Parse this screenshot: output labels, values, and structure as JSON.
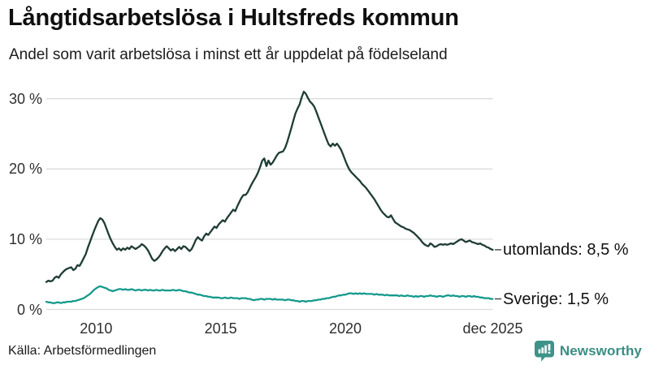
{
  "chart_data": {
    "type": "line",
    "title": "Långtidsarbetslösa i Hultsfreds kommun",
    "subtitle": "Andel som varit arbetslösa i minst ett år uppdelat på födelseland",
    "unit": "%",
    "grid_color": "#dcdcdc",
    "x_axis": {
      "range_years": [
        2008,
        2025.92
      ],
      "ticks": [
        {
          "year": 2010,
          "label": "2010"
        },
        {
          "year": 2015,
          "label": "2015"
        },
        {
          "year": 2020,
          "label": "2020"
        },
        {
          "year": 2025.92,
          "label": "dec 2025"
        }
      ]
    },
    "y_axis": {
      "min": 0,
      "max": 32,
      "grid": true,
      "ticks": [
        {
          "value": 0,
          "label": "0 %"
        },
        {
          "value": 10,
          "label": "10 %"
        },
        {
          "value": 20,
          "label": "20 %"
        },
        {
          "value": 30,
          "label": "30 %"
        }
      ]
    },
    "series": [
      {
        "name": "utomlands",
        "color": "#1e3c35",
        "end_label": "utomlands: 8,5 %",
        "latest_value_pct": 8.5,
        "start_year": 2008,
        "points_per_year": 12,
        "values": [
          3.9,
          4.1,
          4.0,
          4.1,
          4.5,
          4.7,
          4.5,
          5.0,
          5.3,
          5.6,
          5.8,
          5.9,
          6.0,
          5.6,
          5.8,
          6.3,
          6.2,
          6.7,
          7.3,
          7.9,
          8.8,
          9.6,
          10.4,
          11.2,
          11.9,
          12.6,
          13.0,
          12.8,
          12.3,
          11.5,
          10.7,
          10.0,
          9.4,
          8.9,
          8.5,
          8.7,
          8.4,
          8.7,
          8.5,
          8.8,
          8.6,
          9.0,
          8.8,
          8.6,
          8.8,
          9.0,
          9.3,
          9.1,
          8.8,
          8.4,
          7.8,
          7.2,
          6.9,
          7.1,
          7.4,
          7.8,
          8.3,
          8.7,
          9.0,
          8.7,
          8.4,
          8.6,
          8.3,
          8.6,
          8.9,
          8.6,
          9.0,
          8.9,
          8.6,
          8.3,
          8.6,
          9.2,
          9.9,
          10.3,
          10.0,
          9.8,
          10.4,
          10.8,
          10.6,
          11.0,
          11.4,
          11.8,
          11.6,
          12.1,
          12.4,
          12.7,
          12.5,
          13.0,
          13.4,
          13.8,
          14.2,
          14.0,
          14.7,
          15.3,
          15.9,
          16.3,
          16.3,
          16.7,
          17.3,
          17.9,
          18.4,
          18.9,
          19.5,
          20.3,
          21.2,
          21.5,
          20.4,
          21.2,
          20.6,
          20.9,
          21.4,
          21.9,
          22.3,
          22.4,
          22.5,
          23.0,
          23.8,
          24.8,
          25.8,
          26.9,
          27.9,
          28.6,
          29.2,
          30.2,
          31.0,
          30.7,
          30.1,
          29.6,
          29.3,
          28.9,
          28.2,
          27.4,
          26.6,
          25.8,
          25.0,
          24.2,
          23.5,
          23.2,
          23.6,
          23.3,
          23.6,
          23.2,
          22.7,
          22.0,
          21.2,
          20.5,
          19.9,
          19.5,
          19.2,
          18.9,
          18.6,
          18.3,
          17.9,
          17.6,
          17.3,
          16.9,
          16.5,
          16.1,
          15.7,
          15.2,
          14.7,
          14.2,
          13.8,
          13.5,
          13.2,
          13.1,
          13.4,
          12.9,
          12.4,
          12.2,
          12.0,
          11.8,
          11.7,
          11.5,
          11.4,
          11.3,
          11.1,
          10.9,
          10.6,
          10.3,
          10.0,
          9.6,
          9.3,
          9.1,
          9.0,
          9.4,
          9.2,
          8.9,
          9.0,
          9.2,
          9.3,
          9.2,
          9.3,
          9.2,
          9.3,
          9.4,
          9.3,
          9.5,
          9.7,
          9.9,
          10.0,
          9.8,
          9.6,
          9.7,
          9.8,
          9.6,
          9.5,
          9.4,
          9.3,
          9.4,
          9.2,
          9.1,
          8.9,
          8.8,
          8.6,
          8.5
        ]
      },
      {
        "name": "Sverige",
        "color": "#149a8c",
        "end_label": "Sverige: 1,5 %",
        "latest_value_pct": 1.5,
        "start_year": 2008,
        "points_per_year": 12,
        "values": [
          1.1,
          1.0,
          1.0,
          0.9,
          0.9,
          1.0,
          1.0,
          0.9,
          1.0,
          1.0,
          1.1,
          1.1,
          1.1,
          1.2,
          1.2,
          1.3,
          1.4,
          1.5,
          1.6,
          1.8,
          2.0,
          2.2,
          2.5,
          2.8,
          3.0,
          3.2,
          3.3,
          3.2,
          3.1,
          3.0,
          2.8,
          2.7,
          2.6,
          2.7,
          2.8,
          2.9,
          2.9,
          2.8,
          2.9,
          2.8,
          2.8,
          2.9,
          2.8,
          2.7,
          2.8,
          2.8,
          2.7,
          2.8,
          2.8,
          2.7,
          2.8,
          2.7,
          2.7,
          2.8,
          2.7,
          2.7,
          2.8,
          2.7,
          2.7,
          2.7,
          2.7,
          2.8,
          2.7,
          2.7,
          2.8,
          2.7,
          2.6,
          2.6,
          2.5,
          2.4,
          2.4,
          2.3,
          2.2,
          2.1,
          2.1,
          2.0,
          1.9,
          1.9,
          1.8,
          1.8,
          1.7,
          1.7,
          1.7,
          1.7,
          1.6,
          1.6,
          1.7,
          1.6,
          1.6,
          1.7,
          1.6,
          1.6,
          1.6,
          1.5,
          1.6,
          1.6,
          1.6,
          1.5,
          1.5,
          1.4,
          1.3,
          1.4,
          1.4,
          1.5,
          1.5,
          1.4,
          1.5,
          1.5,
          1.5,
          1.4,
          1.5,
          1.4,
          1.4,
          1.4,
          1.4,
          1.3,
          1.4,
          1.4,
          1.3,
          1.3,
          1.2,
          1.2,
          1.1,
          1.2,
          1.2,
          1.1,
          1.2,
          1.2,
          1.2,
          1.3,
          1.3,
          1.4,
          1.4,
          1.5,
          1.5,
          1.6,
          1.6,
          1.7,
          1.8,
          1.8,
          1.9,
          2.0,
          2.0,
          2.1,
          2.1,
          2.2,
          2.3,
          2.3,
          2.2,
          2.3,
          2.2,
          2.3,
          2.2,
          2.3,
          2.2,
          2.2,
          2.2,
          2.2,
          2.1,
          2.2,
          2.1,
          2.1,
          2.1,
          2.0,
          2.1,
          2.0,
          2.0,
          2.0,
          2.0,
          2.0,
          1.9,
          2.0,
          1.9,
          1.9,
          2.0,
          1.9,
          1.9,
          1.8,
          1.9,
          1.8,
          1.9,
          1.9,
          1.8,
          1.9,
          1.9,
          2.0,
          1.9,
          1.9,
          1.8,
          1.9,
          1.9,
          1.8,
          1.9,
          2.0,
          2.0,
          1.9,
          2.0,
          1.9,
          1.9,
          1.8,
          1.9,
          1.9,
          1.8,
          1.9,
          1.9,
          1.8,
          1.9,
          1.8,
          1.8,
          1.7,
          1.7,
          1.6,
          1.6,
          1.6,
          1.5,
          1.5
        ]
      }
    ]
  },
  "footer": {
    "source": "Källa: Arbetsförmedlingen",
    "brand": "Newsworthy",
    "brand_color": "#3a8d84"
  }
}
